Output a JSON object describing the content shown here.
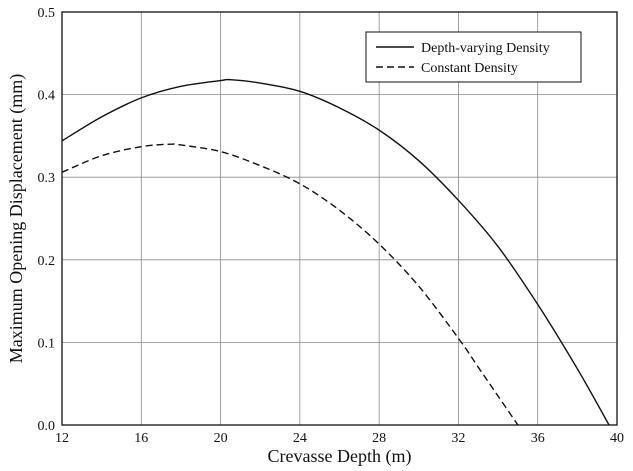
{
  "chart_data": {
    "type": "line",
    "title": "",
    "xlabel": "Crevasse Depth (m)",
    "ylabel": "Maximum Opening Displacement (mm)",
    "xlim": [
      12,
      40
    ],
    "ylim": [
      0,
      0.5
    ],
    "xticks": [
      12,
      16,
      20,
      24,
      28,
      32,
      36,
      40
    ],
    "yticks": [
      0.0,
      0.1,
      0.2,
      0.3,
      0.4,
      0.5
    ],
    "xtick_labels": [
      "12",
      "16",
      "20",
      "24",
      "28",
      "32",
      "36",
      "40"
    ],
    "ytick_labels": [
      "0.0",
      "0.1",
      "0.2",
      "0.3",
      "0.4",
      "0.5"
    ],
    "grid": true,
    "legend_position": "top-right",
    "series": [
      {
        "name": "Depth-varying Density",
        "style": "solid",
        "color": "#111111",
        "x": [
          12,
          14,
          16,
          18,
          20,
          20.5,
          22,
          24,
          26,
          28,
          30,
          32,
          34,
          36,
          38,
          39.6
        ],
        "y": [
          0.344,
          0.373,
          0.396,
          0.41,
          0.417,
          0.418,
          0.414,
          0.404,
          0.384,
          0.357,
          0.32,
          0.272,
          0.216,
          0.146,
          0.068,
          0.0
        ]
      },
      {
        "name": "Constant Density",
        "style": "dashed",
        "color": "#111111",
        "x": [
          12,
          14,
          16,
          17.5,
          18,
          20,
          22,
          24,
          26,
          28,
          30,
          32,
          33,
          34,
          35
        ],
        "y": [
          0.306,
          0.326,
          0.337,
          0.34,
          0.339,
          0.331,
          0.314,
          0.292,
          0.26,
          0.219,
          0.168,
          0.105,
          0.07,
          0.035,
          0.0
        ]
      }
    ]
  }
}
